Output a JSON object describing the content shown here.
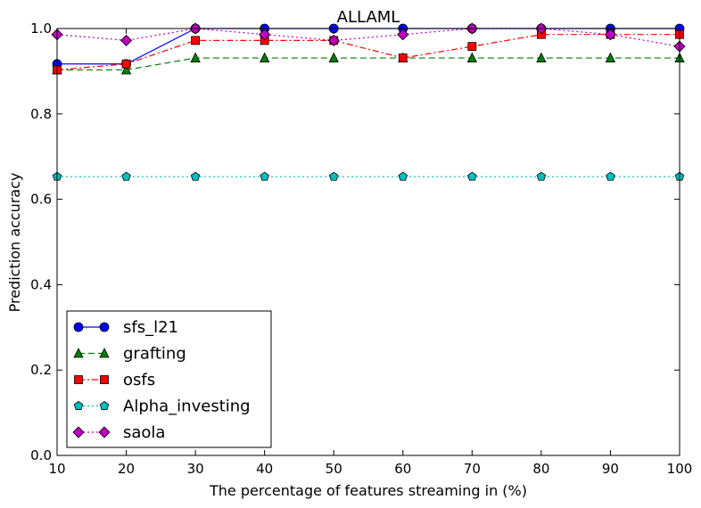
{
  "chart_data": {
    "type": "line",
    "title": "ALLAML",
    "xlabel": "The percentage of features streaming in (%)",
    "ylabel": "Prediction accuracy",
    "x": [
      10,
      20,
      30,
      40,
      50,
      60,
      70,
      80,
      90,
      100
    ],
    "xlim": [
      10,
      100
    ],
    "ylim": [
      0.0,
      1.0
    ],
    "xticks": [
      "10",
      "20",
      "30",
      "40",
      "50",
      "60",
      "70",
      "80",
      "90",
      "100"
    ],
    "yticks": [
      "0.0",
      "0.2",
      "0.4",
      "0.6",
      "0.8",
      "1.0"
    ],
    "grid": false,
    "legend_position": "lower-left",
    "series": [
      {
        "name": "sfs_l21",
        "color": "#0000ff",
        "marker": "circle",
        "linestyle": "solid",
        "values": [
          0.917,
          0.917,
          1.0,
          1.0,
          1.0,
          1.0,
          1.0,
          1.0,
          1.0,
          1.0
        ]
      },
      {
        "name": "grafting",
        "color": "#007f00",
        "marker": "triangle",
        "linestyle": "dashed",
        "values": [
          0.903,
          0.903,
          0.931,
          0.931,
          0.931,
          0.931,
          0.931,
          0.931,
          0.931,
          0.931
        ]
      },
      {
        "name": "osfs",
        "color": "#ff0000",
        "marker": "square",
        "linestyle": "dashdot",
        "values": [
          0.903,
          0.917,
          0.972,
          0.972,
          0.972,
          0.931,
          0.958,
          0.986,
          0.986,
          0.986
        ]
      },
      {
        "name": "Alpha_investing",
        "color": "#00bfbf",
        "marker": "pentagon",
        "linestyle": "dotted",
        "values": [
          0.653,
          0.653,
          0.653,
          0.653,
          0.653,
          0.653,
          0.653,
          0.653,
          0.653,
          0.653
        ]
      },
      {
        "name": "saola",
        "color": "#bf00bf",
        "marker": "diamond",
        "linestyle": "dotted",
        "values": [
          0.986,
          0.972,
          1.0,
          0.986,
          0.972,
          0.986,
          1.0,
          1.0,
          0.986,
          0.958
        ]
      }
    ]
  }
}
